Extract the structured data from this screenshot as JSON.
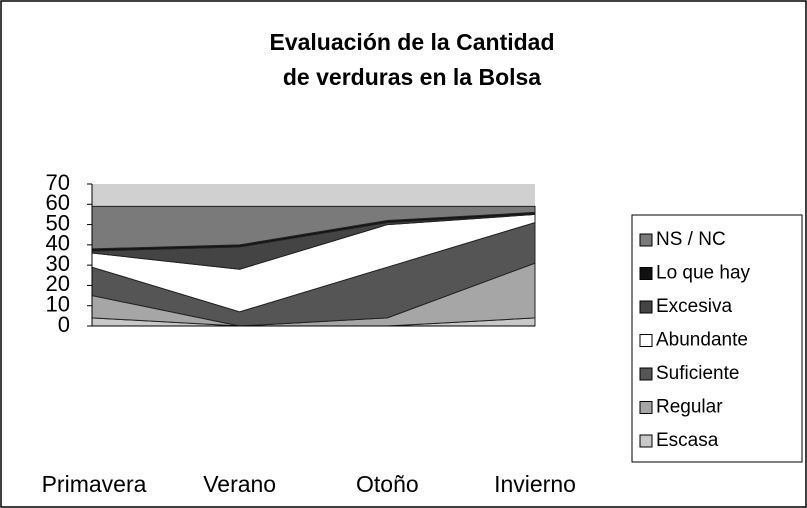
{
  "chart_data": {
    "type": "stacked_area",
    "title": [
      "Evaluación de la Cantidad",
      "de verduras en la Bolsa"
    ],
    "categories": [
      "Primavera",
      "Verano",
      "Otoño",
      "Invierno"
    ],
    "series": [
      {
        "name": "Escasa",
        "color": "#c8c8c8",
        "values": [
          4,
          0,
          0,
          4
        ]
      },
      {
        "name": "Regular",
        "color": "#a6a6a6",
        "values": [
          11,
          0,
          4,
          27
        ]
      },
      {
        "name": "Suficiente",
        "color": "#555555",
        "values": [
          14,
          7,
          25,
          20
        ]
      },
      {
        "name": "Abundante",
        "color": "#ffffff",
        "values": [
          7,
          21,
          21,
          4
        ]
      },
      {
        "name": "Excesiva",
        "color": "#444444",
        "values": [
          1,
          11,
          1,
          0
        ]
      },
      {
        "name": "Lo que hay",
        "color": "#111111",
        "values": [
          1,
          1,
          1,
          1
        ]
      },
      {
        "name": "NS / NC",
        "color": "#7a7a7a",
        "values": [
          21,
          19,
          7,
          3
        ]
      }
    ],
    "ylim": [
      0,
      70
    ],
    "yticks": [
      0,
      10,
      20,
      30,
      40,
      50,
      60,
      70
    ],
    "legend": "right"
  }
}
